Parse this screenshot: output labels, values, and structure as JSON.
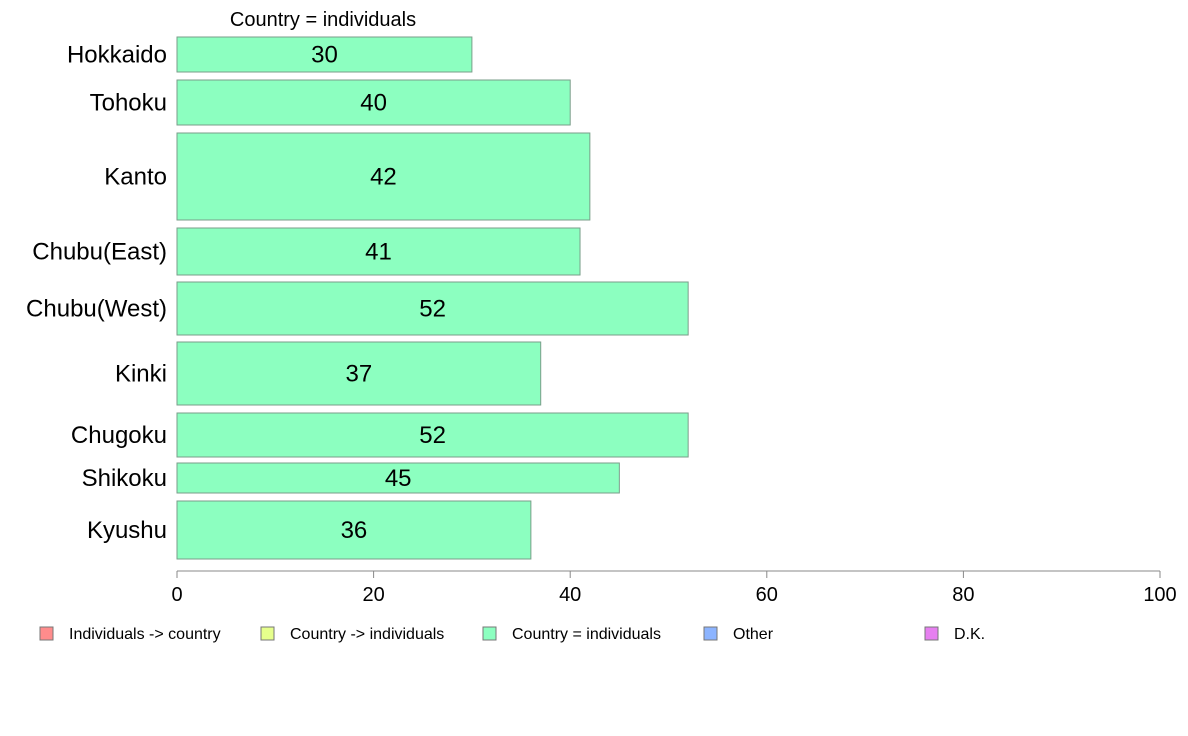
{
  "chart_data": {
    "type": "bar",
    "orientation": "horizontal",
    "title": "Country = individuals",
    "categories": [
      "Hokkaido",
      "Tohoku",
      "Kanto",
      "Chubu(East)",
      "Chubu(West)",
      "Kinki",
      "Chugoku",
      "Shikoku",
      "Kyushu"
    ],
    "series": [
      {
        "name": "Country = individuals",
        "color": "#8cffc0",
        "values": [
          30,
          40,
          42,
          41,
          52,
          37,
          52,
          45,
          36
        ]
      }
    ],
    "xlim": [
      0,
      100
    ],
    "xticks": [
      0,
      20,
      40,
      60,
      80,
      100
    ],
    "grid": false,
    "legend": {
      "placement": "bottom",
      "entries": [
        {
          "label": "Individuals -> country",
          "color": "#ff8c8c"
        },
        {
          "label": "Country -> individuals",
          "color": "#e6ff8c"
        },
        {
          "label": "Country = individuals",
          "color": "#8cffc0"
        },
        {
          "label": "Other",
          "color": "#8cb4ff"
        },
        {
          "label": "D.K.",
          "color": "#e67ff0"
        }
      ]
    }
  }
}
